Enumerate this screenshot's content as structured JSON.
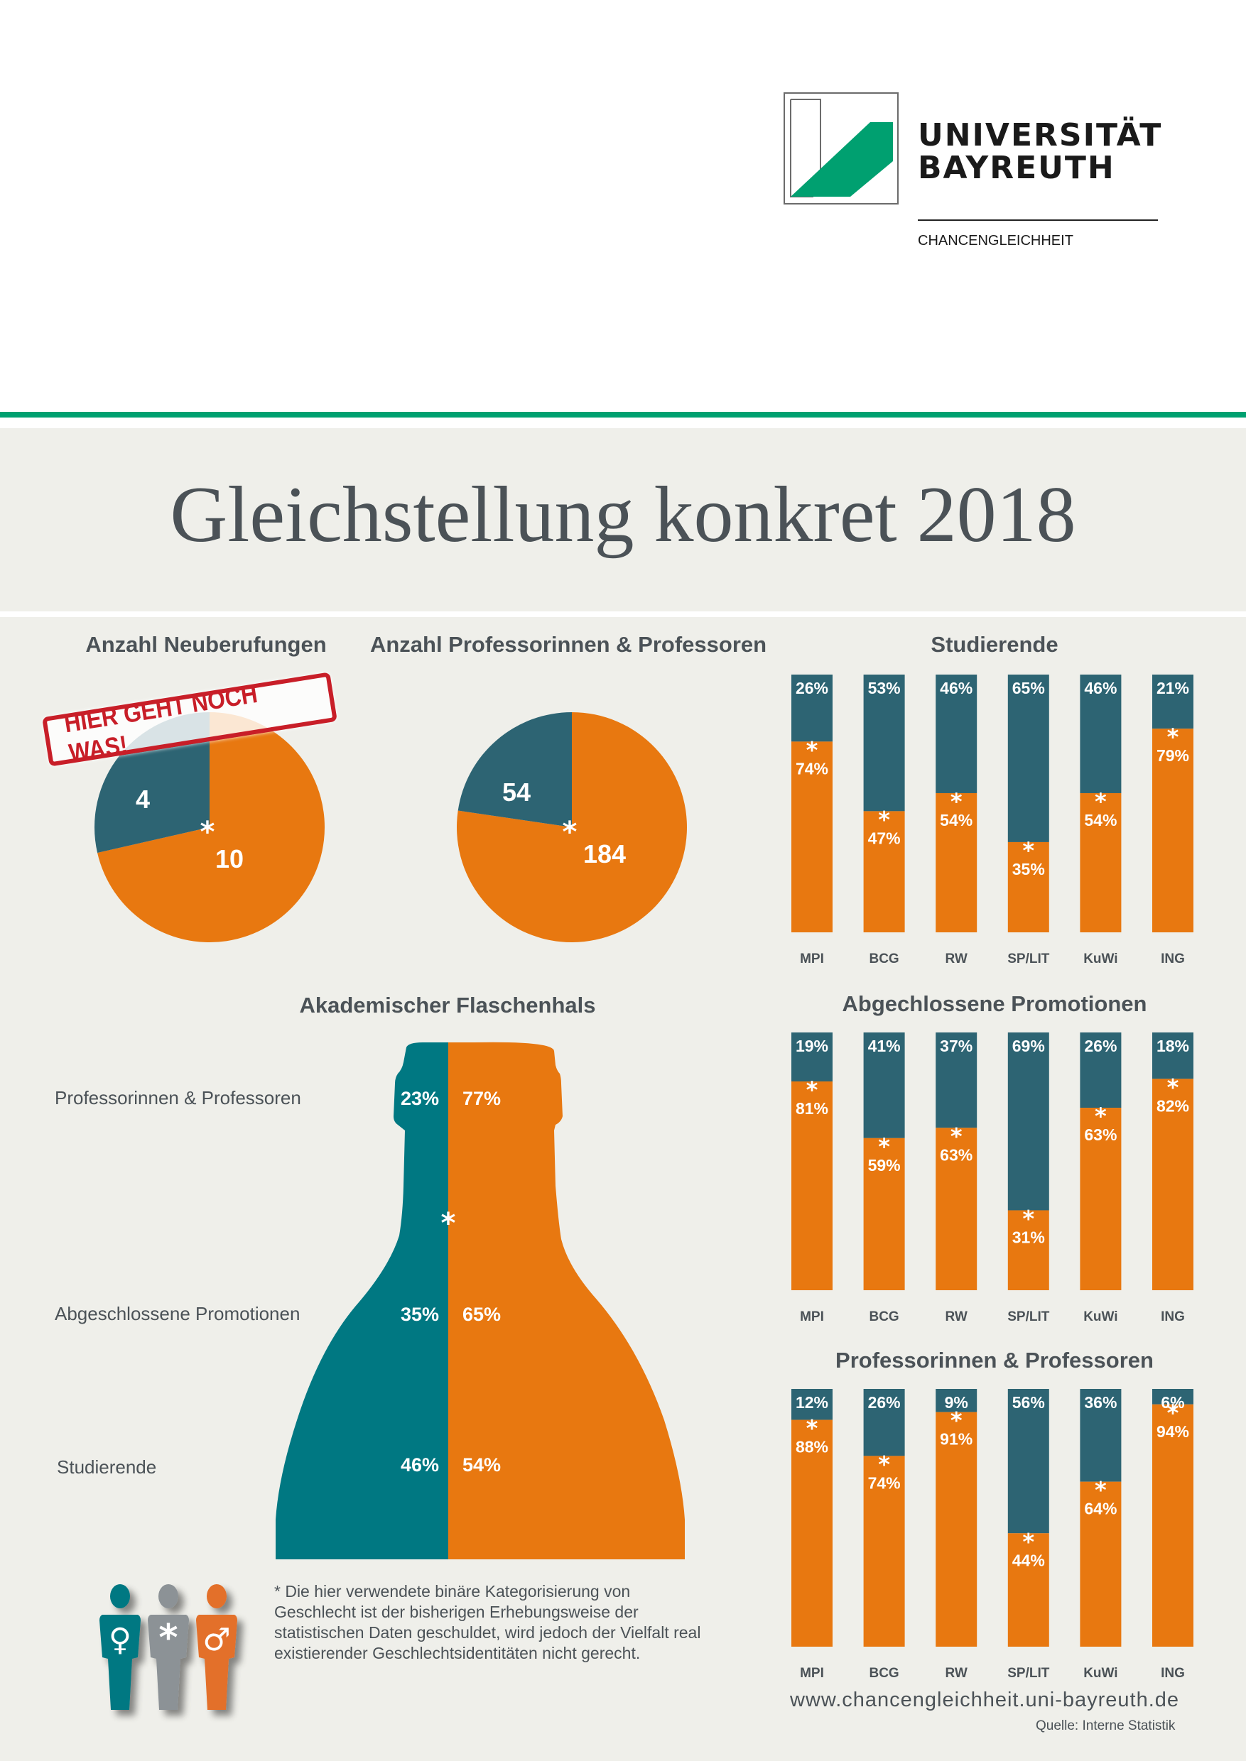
{
  "header": {
    "university_line1": "UNIVERSITÄT",
    "university_line2": "BAYREUTH",
    "department": "CHANCENGLEICHHEIT",
    "logo_icon": "university-logo-icon",
    "brand_color": "#00a070"
  },
  "main_title": "Gleichstellung konkret 2018",
  "colors": {
    "female": "#2d6473",
    "male": "#e87810",
    "bottle_female": "#007882",
    "diverse": "#8c9296",
    "stamp": "#c81e28",
    "text": "#4b5257",
    "background": "#efefea"
  },
  "stamp_text": "HIER GEHT NOCH WAS!",
  "footnote": "* Die hier verwendete binäre Kategorisierung von Geschlecht ist der bisherigen Erhebungsweise der statistischen Daten geschuldet, wird jedoch der Vielfalt real existierender Geschlechtsidentitäten nicht gerecht.",
  "legend_icons": [
    {
      "name": "female-person-icon",
      "symbol": "♀"
    },
    {
      "name": "diverse-person-icon",
      "symbol": "*"
    },
    {
      "name": "male-person-icon",
      "symbol": "♂"
    }
  ],
  "footer": {
    "website": "www.chancengleichheit.uni-bayreuth.de",
    "source": "Quelle: Interne Statistik"
  },
  "chart_data": [
    {
      "id": "neuberufungen",
      "type": "pie",
      "title": "Anzahl Neuberufungen",
      "categories": [
        "Frauen",
        "Männer"
      ],
      "values": [
        4,
        10
      ],
      "labels": [
        "4",
        "10"
      ],
      "center_marker": "*"
    },
    {
      "id": "professuren",
      "type": "pie",
      "title": "Anzahl Professorinnen & Professoren",
      "categories": [
        "Frauen",
        "Männer"
      ],
      "values": [
        54,
        184
      ],
      "labels": [
        "54",
        "184"
      ],
      "center_marker": "*"
    },
    {
      "id": "studierende",
      "type": "bar",
      "stacked": true,
      "title": "Studierende",
      "categories": [
        "MPI",
        "BCG",
        "RW",
        "SP/LIT",
        "KuWi",
        "ING"
      ],
      "series": [
        {
          "name": "Frauen",
          "values": [
            26,
            53,
            46,
            65,
            46,
            21
          ]
        },
        {
          "name": "Männer",
          "values": [
            74,
            47,
            54,
            35,
            54,
            79
          ]
        }
      ],
      "ylim": [
        0,
        100
      ],
      "unit": "%"
    },
    {
      "id": "promotionen",
      "type": "bar",
      "stacked": true,
      "title": "Abgechlossene Promotionen",
      "categories": [
        "MPI",
        "BCG",
        "RW",
        "SP/LIT",
        "KuWi",
        "ING"
      ],
      "series": [
        {
          "name": "Frauen",
          "values": [
            19,
            41,
            37,
            69,
            26,
            18
          ]
        },
        {
          "name": "Männer",
          "values": [
            81,
            59,
            63,
            31,
            63,
            82
          ]
        }
      ],
      "ylim": [
        0,
        100
      ],
      "unit": "%"
    },
    {
      "id": "professoren_faecher",
      "type": "bar",
      "stacked": true,
      "title": "Professorinnen & Professoren",
      "categories": [
        "MPI",
        "BCG",
        "RW",
        "SP/LIT",
        "KuWi",
        "ING"
      ],
      "series": [
        {
          "name": "Frauen",
          "values": [
            12,
            26,
            9,
            56,
            36,
            6
          ]
        },
        {
          "name": "Männer",
          "values": [
            88,
            74,
            91,
            44,
            64,
            94
          ]
        }
      ],
      "ylim": [
        0,
        100
      ],
      "unit": "%"
    },
    {
      "id": "flaschenhals",
      "type": "bar",
      "stacked": true,
      "title": "Akademischer Flaschenhals",
      "categories": [
        "Professorinnen & Professoren",
        "Abgeschlossene Promotionen",
        "Studierende"
      ],
      "series": [
        {
          "name": "Frauen",
          "values": [
            23,
            35,
            46
          ]
        },
        {
          "name": "Männer",
          "values": [
            77,
            65,
            54
          ]
        }
      ],
      "unit": "%",
      "center_marker": "*"
    }
  ]
}
